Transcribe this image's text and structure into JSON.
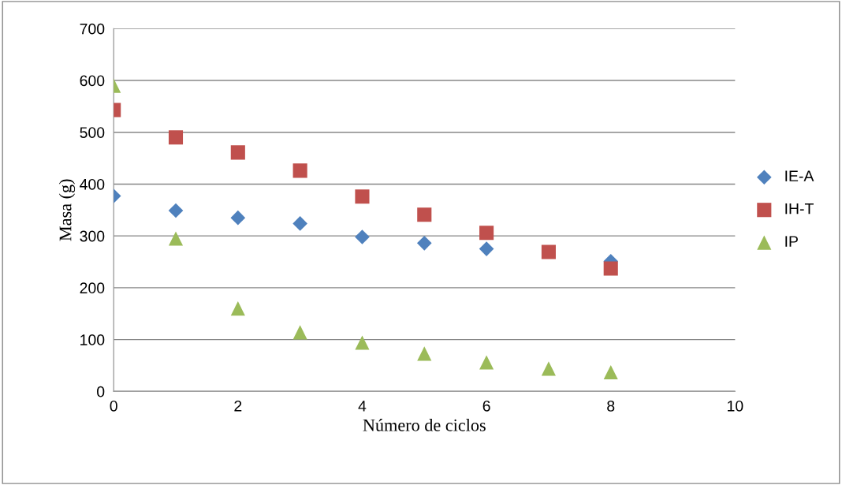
{
  "chart_data": {
    "type": "scatter",
    "xlabel": "Número de ciclos",
    "ylabel": "Masa (g)",
    "x": [
      0,
      1,
      2,
      3,
      4,
      5,
      6,
      7,
      8
    ],
    "series": [
      {
        "name": "IE-A",
        "color": "#4f81bd",
        "marker": "diamond",
        "values": [
          377,
          349,
          335,
          324,
          298,
          286,
          275,
          null,
          251
        ]
      },
      {
        "name": "IH-T",
        "color": "#c0504d",
        "marker": "square",
        "values": [
          543,
          490,
          461,
          426,
          376,
          341,
          306,
          269,
          237
        ]
      },
      {
        "name": "IP",
        "color": "#9bbb59",
        "marker": "triangle",
        "values": [
          590,
          295,
          160,
          114,
          94,
          73,
          56,
          44,
          37
        ]
      }
    ],
    "xlim": [
      0,
      10
    ],
    "xticks": [
      0,
      2,
      4,
      6,
      8,
      10
    ],
    "ylim": [
      0,
      700
    ],
    "yticks": [
      0,
      100,
      200,
      300,
      400,
      500,
      600,
      700
    ],
    "grid": "y",
    "legend": "right"
  }
}
